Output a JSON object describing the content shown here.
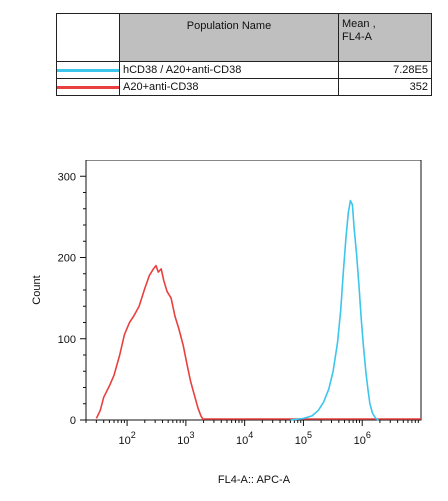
{
  "legend_table": {
    "headers": {
      "blank": "",
      "population": "Population Name",
      "mean_line1": "Mean ,",
      "mean_line2": "FL4-A"
    },
    "rows": [
      {
        "color": "#3cc6ec",
        "name": "hCD38 / A20+anti-CD38",
        "mean": "7.28E5"
      },
      {
        "color": "#e8403f",
        "name": "A20+anti-CD38",
        "mean": "352"
      }
    ]
  },
  "chart_data": {
    "type": "line",
    "xlabel": "FL4-A:: APC-A",
    "ylabel": "Count",
    "xscale": "log",
    "xlim": [
      20,
      10000000
    ],
    "ylim": [
      0,
      320
    ],
    "y_ticks": [
      "0",
      "100",
      "200",
      "300"
    ],
    "x_ticks": [
      {
        "value": 100,
        "base": "10",
        "exp": "2"
      },
      {
        "value": 1000,
        "base": "10",
        "exp": "3"
      },
      {
        "value": 10000,
        "base": "10",
        "exp": "4"
      },
      {
        "value": 100000,
        "base": "10",
        "exp": "5"
      },
      {
        "value": 1000000,
        "base": "10",
        "exp": "6"
      }
    ],
    "series": [
      {
        "name": "A20+anti-CD38",
        "color": "#e8403f",
        "points": [
          [
            30,
            2
          ],
          [
            35,
            12
          ],
          [
            40,
            28
          ],
          [
            50,
            42
          ],
          [
            60,
            55
          ],
          [
            75,
            80
          ],
          [
            90,
            105
          ],
          [
            110,
            120
          ],
          [
            130,
            128
          ],
          [
            160,
            140
          ],
          [
            200,
            162
          ],
          [
            240,
            178
          ],
          [
            280,
            186
          ],
          [
            310,
            190
          ],
          [
            340,
            182
          ],
          [
            380,
            186
          ],
          [
            420,
            172
          ],
          [
            480,
            158
          ],
          [
            560,
            150
          ],
          [
            650,
            128
          ],
          [
            760,
            112
          ],
          [
            900,
            92
          ],
          [
            1050,
            68
          ],
          [
            1200,
            48
          ],
          [
            1400,
            30
          ],
          [
            1600,
            15
          ],
          [
            1800,
            5
          ],
          [
            2000,
            0
          ]
        ]
      },
      {
        "name": "hCD38 / A20+anti-CD38",
        "color": "#3cc6ec",
        "points": [
          [
            60000,
            0
          ],
          [
            100000,
            2
          ],
          [
            140000,
            5
          ],
          [
            180000,
            12
          ],
          [
            220000,
            22
          ],
          [
            270000,
            38
          ],
          [
            320000,
            60
          ],
          [
            380000,
            95
          ],
          [
            430000,
            135
          ],
          [
            480000,
            185
          ],
          [
            530000,
            225
          ],
          [
            580000,
            255
          ],
          [
            630000,
            270
          ],
          [
            680000,
            265
          ],
          [
            730000,
            235
          ],
          [
            800000,
            205
          ],
          [
            880000,
            165
          ],
          [
            960000,
            125
          ],
          [
            1050000,
            90
          ],
          [
            1150000,
            60
          ],
          [
            1250000,
            38
          ],
          [
            1350000,
            20
          ],
          [
            1500000,
            8
          ],
          [
            1700000,
            2
          ],
          [
            1900000,
            0
          ]
        ]
      }
    ]
  }
}
